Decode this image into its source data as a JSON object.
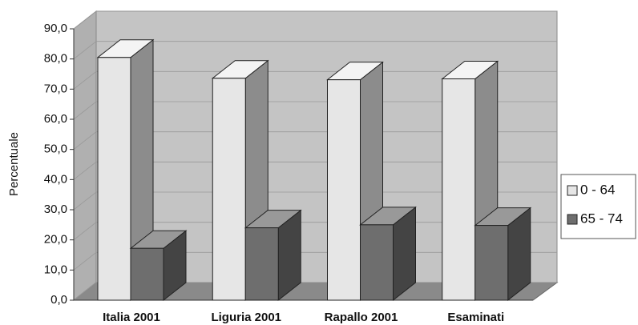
{
  "chart_data": {
    "type": "bar3d",
    "y_label": "Percentuale",
    "categories": [
      "Italia 2001",
      "Liguria 2001",
      "Rapallo 2001",
      "Esaminati"
    ],
    "series": [
      {
        "name": "0 - 64",
        "color": "#e6e6e6",
        "values": [
          80.5,
          73.6,
          73.1,
          73.4
        ]
      },
      {
        "name": "65 - 74",
        "color": "#6e6e6e",
        "values": [
          17.2,
          24.0,
          25.0,
          24.8
        ]
      }
    ],
    "ylim": [
      0,
      90
    ],
    "yticks": [
      {
        "value": 0,
        "label": "0,0"
      },
      {
        "value": 10,
        "label": "10,0"
      },
      {
        "value": 20,
        "label": "20,0"
      },
      {
        "value": 30,
        "label": "30,0"
      },
      {
        "value": 40,
        "label": "40,0"
      },
      {
        "value": 50,
        "label": "50,0"
      },
      {
        "value": 60,
        "label": "60,0"
      },
      {
        "value": 70,
        "label": "70,0"
      },
      {
        "value": 80,
        "label": "80,0"
      },
      {
        "value": 90,
        "label": "90,0"
      }
    ],
    "grid": true,
    "legend": "right"
  }
}
